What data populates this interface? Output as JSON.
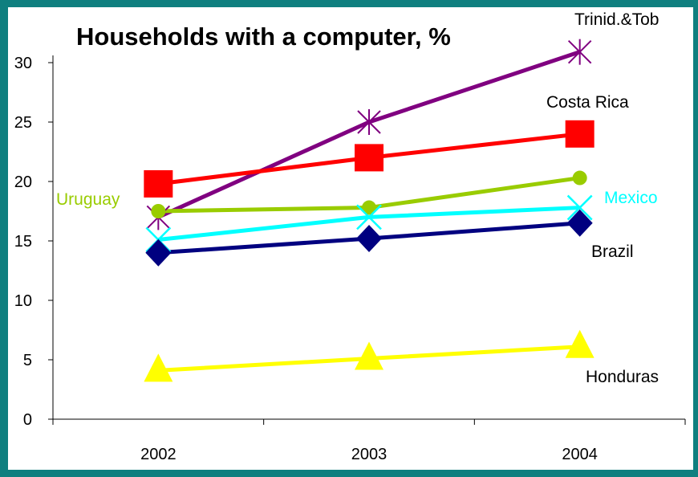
{
  "chart_data": {
    "type": "line",
    "title": "Households with a computer, %",
    "categories": [
      "2002",
      "2003",
      "2004"
    ],
    "ylim": [
      0,
      30
    ],
    "yticks": [
      "0",
      "5",
      "10",
      "15",
      "20",
      "25",
      "30"
    ],
    "grid": false,
    "legend": "none",
    "series": [
      {
        "name": "Trinid.&Tob",
        "values": [
          17.0,
          25.0,
          30.9
        ],
        "color": "#800080",
        "marker": "asterisk-icon"
      },
      {
        "name": "Costa Rica",
        "values": [
          19.8,
          22.0,
          24.0
        ],
        "color": "#ff0000",
        "marker": "square-icon"
      },
      {
        "name": "Uruguay",
        "values": [
          17.5,
          17.8,
          20.3
        ],
        "color": "#99cc00",
        "marker": "circle-icon"
      },
      {
        "name": "Mexico",
        "values": [
          15.1,
          17.0,
          17.8
        ],
        "color": "#00ffff",
        "marker": "x-icon"
      },
      {
        "name": "Brazil",
        "values": [
          14.0,
          15.2,
          16.5
        ],
        "color": "#000080",
        "marker": "diamond-icon"
      },
      {
        "name": "Honduras",
        "values": [
          4.1,
          5.1,
          6.1
        ],
        "color": "#ffff00",
        "marker": "triangle-icon"
      }
    ]
  }
}
